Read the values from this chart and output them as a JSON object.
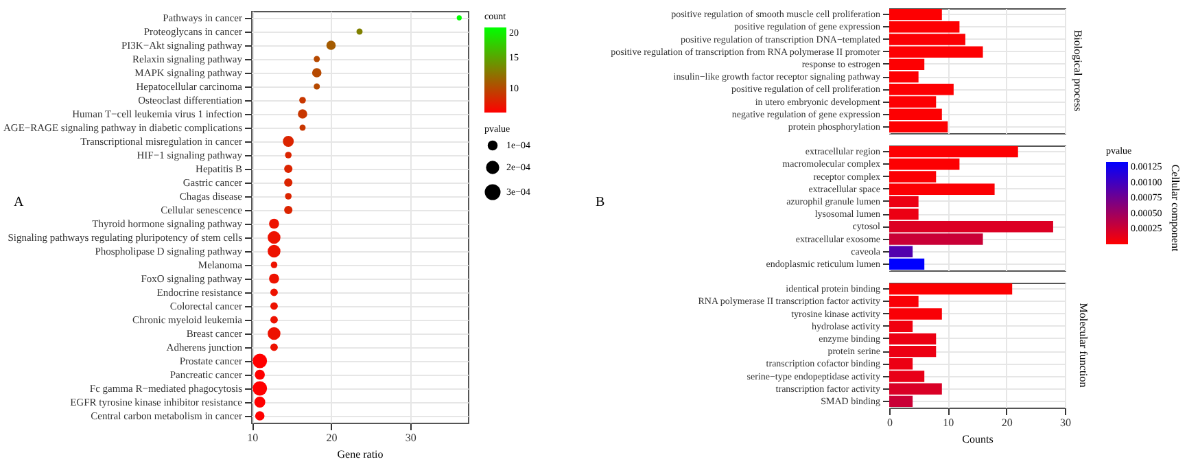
{
  "chart_data": [
    {
      "type": "bubble",
      "orientation": "horizontal",
      "xlabel": "Gene ratio",
      "clabel": "count",
      "legend_title": "pvalue",
      "annotations": [
        "A"
      ],
      "grid": true,
      "categories": [
        "Pathways in cancer",
        "Proteoglycans in cancer",
        "PI3K−Akt signaling pathway",
        "Relaxin signaling pathway",
        "MAPK signaling pathway",
        "Hepatocellular carcinoma",
        "Osteoclast differentiation",
        "Human T−cell leukemia virus 1 infection",
        "AGE−RAGE signaling pathway in diabetic complications",
        "Transcriptional misregulation in cancer",
        "HIF−1 signaling pathway",
        "Hepatitis B",
        "Gastric cancer",
        "Chagas disease",
        "Cellular senescence",
        "Thyroid hormone signaling pathway",
        "Signaling pathways regulating pluripotency of stem cells",
        "Phospholipase D signaling pathway",
        "Melanoma",
        "FoxO signaling pathway",
        "Endocrine resistance",
        "Colorectal cancer",
        "Chronic myeloid leukemia",
        "Breast cancer",
        "Adherens junction",
        "Prostate cancer",
        "Pancreatic cancer",
        "Fc gamma R−mediated phagocytosis",
        "EGFR tyrosine kinase inhibitor resistance",
        "Central carbon metabolism in cancer"
      ],
      "values": [
        36.2,
        23.6,
        20.0,
        18.2,
        18.2,
        18.2,
        16.4,
        16.4,
        16.4,
        14.6,
        14.6,
        14.6,
        14.6,
        14.6,
        14.6,
        12.8,
        12.8,
        12.8,
        12.8,
        12.8,
        12.8,
        12.8,
        12.8,
        12.8,
        12.8,
        11.0,
        11.0,
        11.0,
        11.0,
        11.0
      ],
      "cvalues": [
        20,
        13,
        11,
        10,
        10,
        10,
        9,
        9,
        9,
        8,
        8,
        8,
        8,
        8,
        8,
        7,
        7,
        7,
        7,
        7,
        7,
        7,
        7,
        7,
        7,
        6,
        6,
        6,
        6,
        6
      ],
      "sizes": [
        4e-05,
        6e-05,
        0.00014,
        6e-05,
        0.00014,
        6e-05,
        7e-05,
        0.00014,
        6e-05,
        0.00019,
        7e-05,
        0.00011,
        0.00011,
        7e-05,
        0.00011,
        0.00016,
        0.00026,
        0.00026,
        7e-05,
        0.00016,
        9e-05,
        9e-05,
        9e-05,
        0.00026,
        9e-05,
        0.00033,
        0.00016,
        0.00033,
        0.00019,
        0.00014
      ],
      "size_legend": [
        {
          "value": 0.0001,
          "label": "1e−04"
        },
        {
          "value": 0.0002,
          "label": "2e−04"
        },
        {
          "value": 0.0003,
          "label": "3e−04"
        }
      ],
      "clim": [
        6,
        20
      ],
      "cticks": [
        10,
        15,
        20
      ],
      "xlim": [
        9.9,
        37.3
      ],
      "xticks": [
        10,
        20,
        30
      ]
    },
    {
      "type": "bar",
      "orientation": "horizontal",
      "annotations": [
        "B",
        "Biological process"
      ],
      "grid": true,
      "tick_labels": "y",
      "categories": [
        "positive regulation of smooth muscle cell proliferation",
        "positive regulation of gene expression",
        "positive regulation of transcription DNA−templated",
        "positive regulation of transcription from RNA polymerase II promoter",
        "response to estrogen",
        "insulin−like growth factor receptor signaling pathway",
        "positive regulation of cell proliferation",
        "in utero embryonic development",
        "negative regulation of gene expression",
        "protein phosphorylation"
      ],
      "values": [
        9,
        12,
        13,
        16,
        6,
        5,
        11,
        8,
        9,
        10
      ],
      "colors": [
        "#fd0002",
        "#fd0002",
        "#fb0004",
        "#fd0002",
        "#fd0002",
        "#fd0002",
        "#fd0002",
        "#fd0002",
        "#fd0002",
        "#fd0002"
      ],
      "xlim": [
        0,
        30
      ],
      "xticks": [
        0,
        10,
        20,
        30
      ]
    },
    {
      "type": "bar",
      "orientation": "horizontal",
      "annotations": [
        "Cellular component"
      ],
      "grid": true,
      "tick_labels": "y",
      "clabel": "pvalue",
      "categories": [
        "extracellular region",
        "macromolecular complex",
        "receptor complex",
        "extracellular space",
        "azurophil granule lumen",
        "lysosomal lumen",
        "cytosol",
        "extracellular exosome",
        "caveola",
        "endoplasmic reticulum lumen"
      ],
      "values": [
        22,
        12,
        8,
        18,
        5,
        5,
        28,
        16,
        4,
        6
      ],
      "cvalues": [
        1e-05,
        1e-05,
        2e-05,
        2e-05,
        0.0001,
        0.0001,
        0.00018,
        0.00028,
        0.0009,
        0.00133
      ],
      "clim": [
        0,
        0.00133
      ],
      "cticks": [
        {
          "value": 0.00025,
          "label": "0.00025"
        },
        {
          "value": 0.0005,
          "label": "0.00050"
        },
        {
          "value": 0.00075,
          "label": "0.00075"
        },
        {
          "value": 0.001,
          "label": "0.00100"
        },
        {
          "value": 0.00125,
          "label": "0.00125"
        }
      ],
      "xlim": [
        0,
        30
      ],
      "xticks": [
        0,
        10,
        20,
        30
      ]
    },
    {
      "type": "bar",
      "orientation": "horizontal",
      "annotations": [
        "Molecular function"
      ],
      "grid": true,
      "xlabel": "Counts",
      "categories": [
        "identical protein binding",
        "RNA polymerase II transcription factor activity",
        "tyrosine kinase activity",
        "hydrolase activity",
        "enzyme binding",
        "protein serine",
        "transcription cofactor binding",
        "serine−type endopeptidase activity",
        "transcription factor activity",
        "SMAD binding"
      ],
      "values": [
        21,
        5,
        9,
        4,
        8,
        8,
        4,
        6,
        9,
        4
      ],
      "colors": [
        "#fd0002",
        "#f90006",
        "#f90006",
        "#f0000f",
        "#ec0013",
        "#ec0013",
        "#ec0013",
        "#e80017",
        "#d90026",
        "#c90036"
      ],
      "xlim": [
        0,
        30
      ],
      "xticks": [
        0,
        10,
        20,
        30
      ]
    }
  ]
}
